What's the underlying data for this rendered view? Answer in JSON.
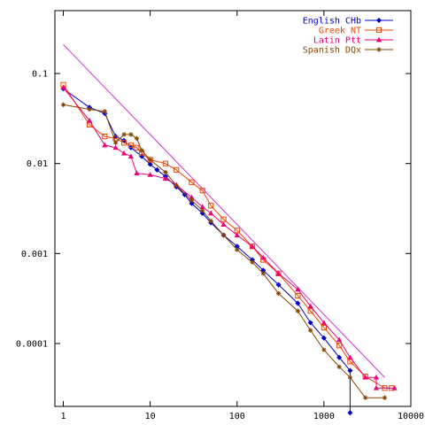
{
  "chart_data": {
    "type": "line",
    "title": "",
    "xlabel": "",
    "ylabel": "",
    "xscale": "log",
    "yscale": "log",
    "xlim": [
      0.8,
      10000
    ],
    "ylim": [
      2e-05,
      0.5
    ],
    "grid": false,
    "legend_position": "top-right",
    "x_ticks": [
      {
        "value": 1,
        "label": "1"
      },
      {
        "value": 10,
        "label": "10"
      },
      {
        "value": 100,
        "label": "100"
      },
      {
        "value": 1000,
        "label": "1000"
      },
      {
        "value": 10000,
        "label": "10000"
      }
    ],
    "y_ticks": [
      {
        "value": 0.1,
        "label": "0.1"
      },
      {
        "value": 0.01,
        "label": "0.01"
      },
      {
        "value": 0.001,
        "label": "0.001"
      },
      {
        "value": 0.0001,
        "label": "0.0001"
      }
    ],
    "reference_line": {
      "color": "#cc33cc",
      "points": [
        [
          1,
          0.21
        ],
        [
          5000,
          4.2e-05
        ]
      ]
    },
    "series": [
      {
        "name": "English CHb",
        "color": "#0000cc",
        "marker": "diamond",
        "points": [
          [
            1,
            0.068
          ],
          [
            2,
            0.042
          ],
          [
            3,
            0.036
          ],
          [
            4,
            0.02
          ],
          [
            5,
            0.018
          ],
          [
            6,
            0.015
          ],
          [
            8,
            0.012
          ],
          [
            10,
            0.0098
          ],
          [
            12,
            0.0085
          ],
          [
            15,
            0.0072
          ],
          [
            20,
            0.0055
          ],
          [
            25,
            0.0045
          ],
          [
            30,
            0.0036
          ],
          [
            40,
            0.0028
          ],
          [
            50,
            0.0022
          ],
          [
            70,
            0.0016
          ],
          [
            100,
            0.0012
          ],
          [
            150,
            0.00085
          ],
          [
            200,
            0.00065
          ],
          [
            300,
            0.00045
          ],
          [
            500,
            0.00028
          ],
          [
            700,
            0.00017
          ],
          [
            1000,
            0.000115
          ],
          [
            1500,
            7e-05
          ],
          [
            2000,
            5e-05
          ],
          [
            2000,
            1.7e-05
          ]
        ]
      },
      {
        "name": "Greek NT",
        "color": "#ee4400",
        "marker": "square",
        "points": [
          [
            1,
            0.075
          ],
          [
            2,
            0.027
          ],
          [
            3,
            0.02
          ],
          [
            4,
            0.019
          ],
          [
            5,
            0.017
          ],
          [
            6,
            0.016
          ],
          [
            7,
            0.015
          ],
          [
            8,
            0.013
          ],
          [
            10,
            0.011
          ],
          [
            15,
            0.01
          ],
          [
            20,
            0.0085
          ],
          [
            30,
            0.0062
          ],
          [
            40,
            0.005
          ],
          [
            50,
            0.0034
          ],
          [
            70,
            0.0024
          ],
          [
            100,
            0.0018
          ],
          [
            150,
            0.0012
          ],
          [
            200,
            0.00085
          ],
          [
            300,
            0.0006
          ],
          [
            500,
            0.00034
          ],
          [
            700,
            0.00023
          ],
          [
            1000,
            0.00015
          ],
          [
            1500,
            9.5e-05
          ],
          [
            2000,
            6.3e-05
          ],
          [
            3000,
            4.3e-05
          ],
          [
            5000,
            3.2e-05
          ],
          [
            6000,
            3.2e-05
          ]
        ]
      },
      {
        "name": "Latin Ptt",
        "color": "#ee0077",
        "marker": "triangle",
        "points": [
          [
            1,
            0.07
          ],
          [
            2,
            0.03
          ],
          [
            3,
            0.016
          ],
          [
            4,
            0.015
          ],
          [
            5,
            0.013
          ],
          [
            6,
            0.012
          ],
          [
            7,
            0.0078
          ],
          [
            10,
            0.0075
          ],
          [
            15,
            0.0068
          ],
          [
            20,
            0.0058
          ],
          [
            30,
            0.0042
          ],
          [
            40,
            0.0033
          ],
          [
            50,
            0.0028
          ],
          [
            70,
            0.0021
          ],
          [
            100,
            0.0016
          ],
          [
            150,
            0.0012
          ],
          [
            200,
            0.0009
          ],
          [
            300,
            0.0006
          ],
          [
            500,
            0.0004
          ],
          [
            700,
            0.00026
          ],
          [
            1000,
            0.00017
          ],
          [
            1500,
            0.00011
          ],
          [
            2000,
            7e-05
          ],
          [
            3000,
            4.2e-05
          ],
          [
            4000,
            4.2e-05
          ],
          [
            4000,
            3.2e-05
          ],
          [
            6500,
            3.2e-05
          ]
        ]
      },
      {
        "name": "Spanish DQx",
        "color": "#884400",
        "marker": "star",
        "points": [
          [
            1,
            0.045
          ],
          [
            2,
            0.04
          ],
          [
            3,
            0.038
          ],
          [
            4,
            0.017
          ],
          [
            5,
            0.021
          ],
          [
            6,
            0.021
          ],
          [
            7,
            0.019
          ],
          [
            8,
            0.014
          ],
          [
            10,
            0.011
          ],
          [
            15,
            0.008
          ],
          [
            20,
            0.0057
          ],
          [
            30,
            0.0039
          ],
          [
            40,
            0.003
          ],
          [
            50,
            0.0023
          ],
          [
            70,
            0.0016
          ],
          [
            100,
            0.0011
          ],
          [
            150,
            0.0008
          ],
          [
            200,
            0.0006
          ],
          [
            300,
            0.00036
          ],
          [
            500,
            0.00023
          ],
          [
            700,
            0.00014
          ],
          [
            1000,
            8.5e-05
          ],
          [
            1500,
            5.5e-05
          ],
          [
            2000,
            4.2e-05
          ],
          [
            3000,
            2.5e-05
          ],
          [
            5000,
            2.5e-05
          ]
        ]
      }
    ]
  }
}
